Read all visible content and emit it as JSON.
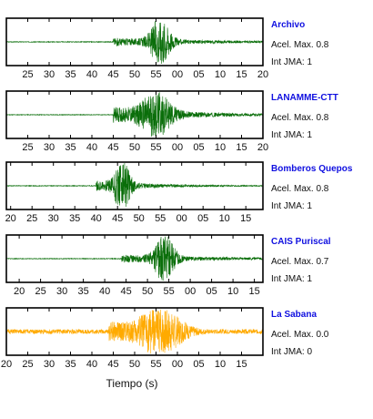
{
  "chart_data": {
    "type": "line",
    "xlabel": "Tiempo (s)",
    "panels": [
      {
        "station": "Archivo",
        "acel_label": "Acel. Max.",
        "acel_value": "0.8",
        "jma_label": "Int JMA:",
        "jma_value": "1",
        "ticks": [
          "25",
          "30",
          "35",
          "40",
          "45",
          "50",
          "55",
          "00",
          "05",
          "10",
          "15",
          "20"
        ],
        "first_tick_seconds": 25,
        "seconds_range": [
          20,
          80
        ],
        "color": "#0a6e0a",
        "onset": 45,
        "peak_center": 56,
        "amplitude": 0.8,
        "shape": "sharp",
        "seed": 3
      },
      {
        "station": "LANAMME-CTT",
        "acel_label": "Acel. Max.",
        "acel_value": "0.8",
        "jma_label": "Int JMA:",
        "jma_value": "1",
        "ticks": [
          "25",
          "30",
          "35",
          "40",
          "45",
          "50",
          "55",
          "00",
          "05",
          "10",
          "15",
          "20"
        ],
        "first_tick_seconds": 25,
        "seconds_range": [
          20,
          80
        ],
        "color": "#0a6e0a",
        "onset": 45,
        "peak_center": 55,
        "amplitude": 0.75,
        "shape": "broad",
        "seed": 11
      },
      {
        "station": "Bomberos Quepos",
        "acel_label": "Acel. Max.",
        "acel_value": "0.8",
        "jma_label": "Int JMA:",
        "jma_value": "1",
        "ticks": [
          "20",
          "25",
          "30",
          "35",
          "40",
          "45",
          "50",
          "55",
          "00",
          "05",
          "10",
          "15"
        ],
        "first_tick_seconds": 20,
        "seconds_range": [
          19,
          79
        ],
        "color": "#0a6e0a",
        "onset": 40,
        "peak_center": 46,
        "amplitude": 0.85,
        "shape": "early",
        "seed": 23
      },
      {
        "station": "CAIS Puriscal",
        "acel_label": "Acel. Max.",
        "acel_value": "0.7",
        "jma_label": "Int JMA:",
        "jma_value": "1",
        "ticks": [
          "20",
          "25",
          "30",
          "35",
          "40",
          "45",
          "50",
          "55",
          "00",
          "05",
          "10",
          "15"
        ],
        "first_tick_seconds": 20,
        "seconds_range": [
          17,
          77
        ],
        "color": "#0a6e0a",
        "onset": 44,
        "peak_center": 54,
        "amplitude": 0.8,
        "shape": "sharp",
        "seed": 37
      },
      {
        "station": "La Sabana",
        "acel_label": "Acel. Max.",
        "acel_value": "0.0",
        "jma_label": "Int JMA:",
        "jma_value": "0",
        "ticks": [
          "20",
          "25",
          "30",
          "35",
          "40",
          "45",
          "50",
          "55",
          "00",
          "05",
          "10",
          "15"
        ],
        "first_tick_seconds": 20,
        "seconds_range": [
          20,
          80
        ],
        "color": "#ffaa00",
        "onset": 44,
        "peak_center": 56,
        "amplitude": 0.8,
        "shape": "noisy",
        "seed": 51
      }
    ]
  }
}
